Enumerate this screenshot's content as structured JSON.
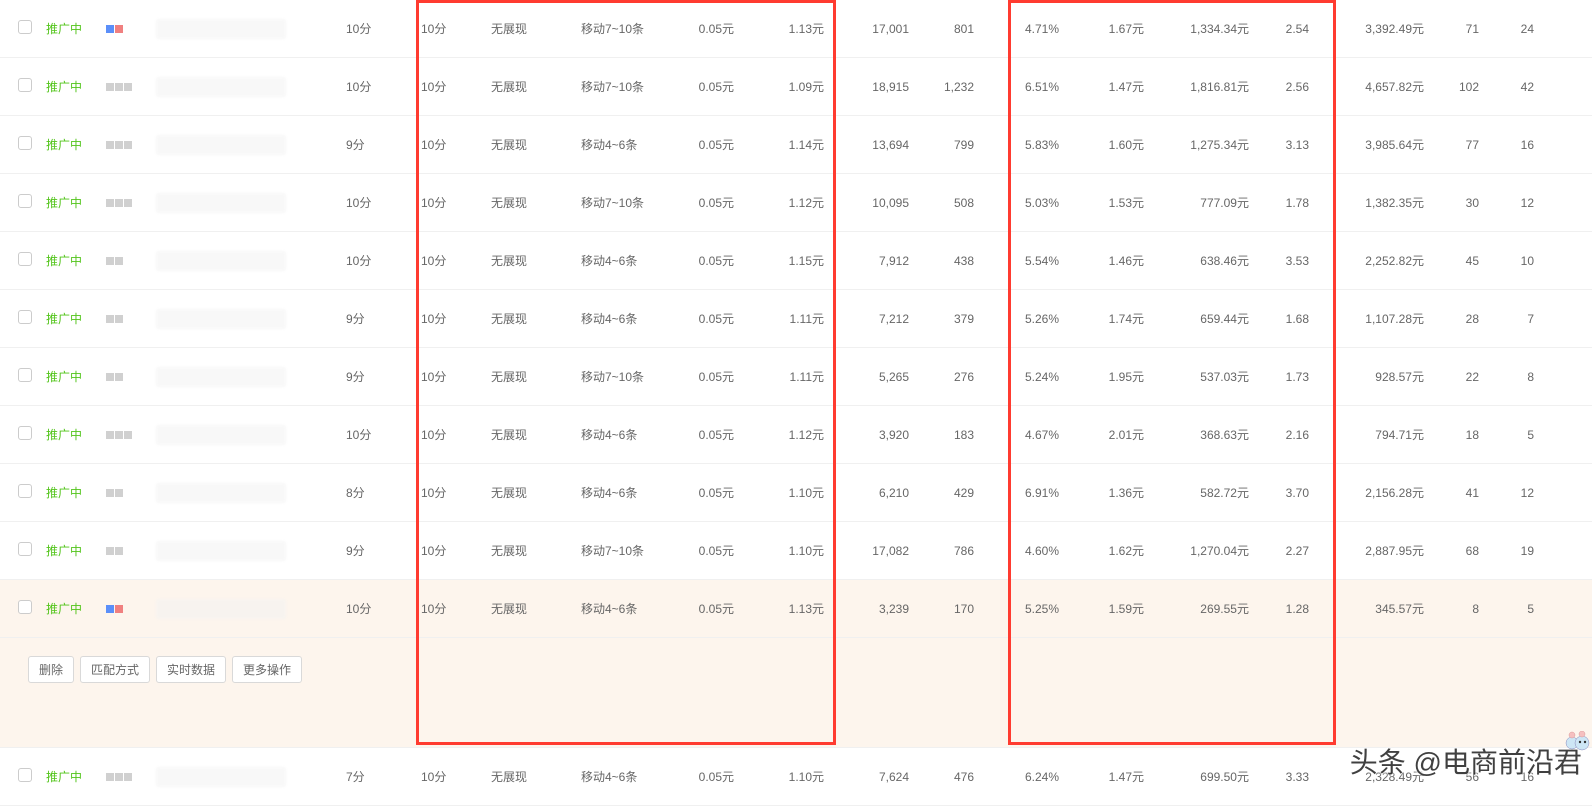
{
  "status_label": "推广中",
  "actions": {
    "delete": "删除",
    "match": "匹配方式",
    "realtime": "实时数据",
    "more": "更多操作"
  },
  "colors": {
    "status": "#52c41a",
    "highlight_bg": "#fdf5ed",
    "red_border": "#ff3b30",
    "icon_blue": "#5b8ff9",
    "icon_red": "#f08080"
  },
  "watermark": "头条 @电商前沿君",
  "rows": [
    {
      "icons": [
        "#5b8ff9",
        "#f08080"
      ],
      "score1": "10分",
      "score2": "10分",
      "disp": "无展现",
      "mobile": "移动7~10条",
      "price": "0.05元",
      "cpc": "1.13元",
      "imp": "17,001",
      "clicks": "801",
      "ctr": "4.71%",
      "avgcpc": "1.67元",
      "spend": "1,334.34元",
      "roi": "2.54",
      "rev": "3,392.49元",
      "conv1": "71",
      "conv2": "24",
      "highlighted": false
    },
    {
      "icons": [
        "#d0d0d0",
        "#d0d0d0",
        "#d0d0d0"
      ],
      "score1": "10分",
      "score2": "10分",
      "disp": "无展现",
      "mobile": "移动7~10条",
      "price": "0.05元",
      "cpc": "1.09元",
      "imp": "18,915",
      "clicks": "1,232",
      "ctr": "6.51%",
      "avgcpc": "1.47元",
      "spend": "1,816.81元",
      "roi": "2.56",
      "rev": "4,657.82元",
      "conv1": "102",
      "conv2": "42",
      "highlighted": false
    },
    {
      "icons": [
        "#d0d0d0",
        "#d0d0d0",
        "#d0d0d0"
      ],
      "score1": "9分",
      "score2": "10分",
      "disp": "无展现",
      "mobile": "移动4~6条",
      "price": "0.05元",
      "cpc": "1.14元",
      "imp": "13,694",
      "clicks": "799",
      "ctr": "5.83%",
      "avgcpc": "1.60元",
      "spend": "1,275.34元",
      "roi": "3.13",
      "rev": "3,985.64元",
      "conv1": "77",
      "conv2": "16",
      "highlighted": false
    },
    {
      "icons": [
        "#d0d0d0",
        "#d0d0d0",
        "#d0d0d0"
      ],
      "score1": "10分",
      "score2": "10分",
      "disp": "无展现",
      "mobile": "移动7~10条",
      "price": "0.05元",
      "cpc": "1.12元",
      "imp": "10,095",
      "clicks": "508",
      "ctr": "5.03%",
      "avgcpc": "1.53元",
      "spend": "777.09元",
      "roi": "1.78",
      "rev": "1,382.35元",
      "conv1": "30",
      "conv2": "12",
      "highlighted": false
    },
    {
      "icons": [
        "#d0d0d0",
        "#d0d0d0"
      ],
      "score1": "10分",
      "score2": "10分",
      "disp": "无展现",
      "mobile": "移动4~6条",
      "price": "0.05元",
      "cpc": "1.15元",
      "imp": "7,912",
      "clicks": "438",
      "ctr": "5.54%",
      "avgcpc": "1.46元",
      "spend": "638.46元",
      "roi": "3.53",
      "rev": "2,252.82元",
      "conv1": "45",
      "conv2": "10",
      "highlighted": false
    },
    {
      "icons": [
        "#d0d0d0",
        "#d0d0d0"
      ],
      "score1": "9分",
      "score2": "10分",
      "disp": "无展现",
      "mobile": "移动4~6条",
      "price": "0.05元",
      "cpc": "1.11元",
      "imp": "7,212",
      "clicks": "379",
      "ctr": "5.26%",
      "avgcpc": "1.74元",
      "spend": "659.44元",
      "roi": "1.68",
      "rev": "1,107.28元",
      "conv1": "28",
      "conv2": "7",
      "highlighted": false
    },
    {
      "icons": [
        "#d0d0d0",
        "#d0d0d0"
      ],
      "score1": "9分",
      "score2": "10分",
      "disp": "无展现",
      "mobile": "移动7~10条",
      "price": "0.05元",
      "cpc": "1.11元",
      "imp": "5,265",
      "clicks": "276",
      "ctr": "5.24%",
      "avgcpc": "1.95元",
      "spend": "537.03元",
      "roi": "1.73",
      "rev": "928.57元",
      "conv1": "22",
      "conv2": "8",
      "highlighted": false
    },
    {
      "icons": [
        "#d0d0d0",
        "#d0d0d0",
        "#d0d0d0"
      ],
      "score1": "10分",
      "score2": "10分",
      "disp": "无展现",
      "mobile": "移动4~6条",
      "price": "0.05元",
      "cpc": "1.12元",
      "imp": "3,920",
      "clicks": "183",
      "ctr": "4.67%",
      "avgcpc": "2.01元",
      "spend": "368.63元",
      "roi": "2.16",
      "rev": "794.71元",
      "conv1": "18",
      "conv2": "5",
      "highlighted": false
    },
    {
      "icons": [
        "#d0d0d0",
        "#d0d0d0"
      ],
      "score1": "8分",
      "score2": "10分",
      "disp": "无展现",
      "mobile": "移动4~6条",
      "price": "0.05元",
      "cpc": "1.10元",
      "imp": "6,210",
      "clicks": "429",
      "ctr": "6.91%",
      "avgcpc": "1.36元",
      "spend": "582.72元",
      "roi": "3.70",
      "rev": "2,156.28元",
      "conv1": "41",
      "conv2": "12",
      "highlighted": false
    },
    {
      "icons": [
        "#d0d0d0",
        "#d0d0d0"
      ],
      "score1": "9分",
      "score2": "10分",
      "disp": "无展现",
      "mobile": "移动7~10条",
      "price": "0.05元",
      "cpc": "1.10元",
      "imp": "17,082",
      "clicks": "786",
      "ctr": "4.60%",
      "avgcpc": "1.62元",
      "spend": "1,270.04元",
      "roi": "2.27",
      "rev": "2,887.95元",
      "conv1": "68",
      "conv2": "19",
      "highlighted": false
    },
    {
      "icons": [
        "#5b8ff9",
        "#f08080"
      ],
      "score1": "10分",
      "score2": "10分",
      "disp": "无展现",
      "mobile": "移动4~6条",
      "price": "0.05元",
      "cpc": "1.13元",
      "imp": "3,239",
      "clicks": "170",
      "ctr": "5.25%",
      "avgcpc": "1.59元",
      "spend": "269.55元",
      "roi": "1.28",
      "rev": "345.57元",
      "conv1": "8",
      "conv2": "5",
      "highlighted": true
    },
    {
      "icons": [
        "#d0d0d0",
        "#d0d0d0",
        "#d0d0d0"
      ],
      "score1": "7分",
      "score2": "10分",
      "disp": "无展现",
      "mobile": "移动4~6条",
      "price": "0.05元",
      "cpc": "1.10元",
      "imp": "7,624",
      "clicks": "476",
      "ctr": "6.24%",
      "avgcpc": "1.47元",
      "spend": "699.50元",
      "roi": "3.33",
      "rev": "2,328.49元",
      "conv1": "56",
      "conv2": "16",
      "highlighted": false
    }
  ]
}
